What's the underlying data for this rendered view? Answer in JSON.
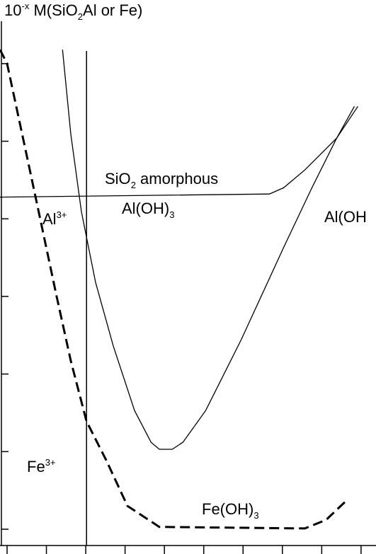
{
  "chart_data": {
    "type": "line",
    "xlim": [
      -0.18,
      9.38
    ],
    "ylim": [
      -0.21,
      6.82
    ],
    "xticks": [
      0,
      1,
      2,
      3,
      4,
      5,
      6,
      7,
      8,
      9
    ],
    "yticks": [
      0,
      1,
      2,
      3,
      4,
      5,
      6
    ],
    "vline": 2.02,
    "labels": [
      {
        "parts": [
          {
            "text": "10"
          },
          {
            "text": "-x",
            "shift": "sup"
          },
          {
            "text": " M(SiO"
          },
          {
            "text": "2",
            "shift": "sub"
          },
          {
            "text": "Al or Fe)"
          }
        ]
      },
      {
        "parts": [
          {
            "text": "SiO"
          },
          {
            "text": "2",
            "shift": "sub"
          },
          {
            "text": " amorphous"
          }
        ]
      },
      {
        "parts": [
          {
            "text": "Al(OH)"
          },
          {
            "text": "3",
            "shift": "sub"
          }
        ]
      },
      {
        "parts": [
          {
            "text": "Al(OH"
          }
        ]
      },
      {
        "parts": [
          {
            "text": "Al"
          },
          {
            "text": "3+",
            "shift": "sup"
          }
        ]
      },
      {
        "parts": [
          {
            "text": "Fe"
          },
          {
            "text": "3+",
            "shift": "sup"
          }
        ]
      },
      {
        "parts": [
          {
            "text": "Fe(OH)"
          },
          {
            "text": "3",
            "shift": "sub"
          }
        ]
      }
    ],
    "series": [
      {
        "color": "#000000",
        "dashed": true,
        "width": 3,
        "x": [
          -0.18,
          0,
          0.54,
          1.26,
          1.62,
          2.02,
          2.52,
          3.06,
          3.87,
          7.57,
          8.11,
          8.65
        ],
        "values": [
          6.18,
          6.0,
          4.72,
          3.0,
          2.17,
          1.39,
          0.89,
          0.3,
          0.03,
          0.01,
          0.12,
          0.38
        ]
      },
      {
        "color": "#000000",
        "dashed": false,
        "width": 1.3,
        "x": [
          1.41,
          1.62,
          1.89,
          2.25,
          2.7,
          3.24,
          3.66,
          3.87,
          4.2,
          4.47,
          5.05,
          5.95,
          7.03,
          7.75,
          8.38,
          8.83
        ],
        "values": [
          6.18,
          5.09,
          4.09,
          3.18,
          2.36,
          1.53,
          1.12,
          1.03,
          1.03,
          1.12,
          1.53,
          2.44,
          3.63,
          4.4,
          5.04,
          5.45
        ]
      },
      {
        "color": "#000000",
        "dashed": false,
        "width": 1.3,
        "x": [
          -0.18,
          6.67,
          7.03,
          7.57,
          8.38,
          8.92
        ],
        "values": [
          4.28,
          4.32,
          4.4,
          4.63,
          5.04,
          5.45
        ]
      }
    ]
  }
}
